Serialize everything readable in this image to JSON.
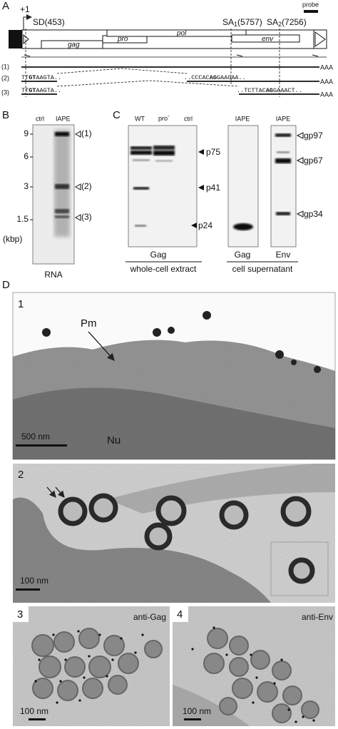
{
  "panel_a": {
    "label": "A",
    "start": "+1",
    "probe": "probe",
    "sd": "SD(453)",
    "sa1": {
      "prefix": "SA",
      "sub": "1",
      "suffix": "(5757)"
    },
    "sa2": {
      "prefix": "SA",
      "sub": "2",
      "suffix": "(7256)"
    },
    "genes": [
      "gag",
      "pro",
      "pol",
      "env"
    ],
    "transcripts": [
      {
        "label": "(1)",
        "tail": "AAA"
      },
      {
        "label": "(2)",
        "left": [
          "TT",
          "GT",
          "AAGTA.."
        ],
        "right": [
          "..CCCAC",
          "AG",
          "GAAGAA.."
        ],
        "tail": "AAA"
      },
      {
        "label": "(3)",
        "left": [
          "TT",
          "GT",
          "AAGTA.."
        ],
        "right": [
          "..TCTTAC",
          "AG",
          "GAAACT.."
        ],
        "tail": "AAA"
      }
    ]
  },
  "panel_b": {
    "label": "B",
    "lanes": [
      "ctrl",
      "IAPE"
    ],
    "sizes": [
      9,
      6,
      3,
      1.5
    ],
    "unit": "(kbp)",
    "bands": [
      "(1)",
      "(2)",
      "(3)"
    ],
    "caption": "RNA"
  },
  "panel_c": {
    "label": "C",
    "extract_lanes": [
      {
        "text": "WT"
      },
      {
        "text": "pro",
        "sup": "-"
      },
      {
        "text": "ctrl"
      }
    ],
    "extract_markers": [
      "p75",
      "p41",
      "p24"
    ],
    "supernatant_lanes": [
      "IAPE",
      "IAPE"
    ],
    "supernatant_markers": [
      "gp97",
      "gp67",
      "gp34"
    ],
    "captions": {
      "extract_antibody": "Gag",
      "extract": "whole-cell extract",
      "supernatant_gag": "Gag",
      "supernatant_env": "Env",
      "supernatant": "cell supernatant"
    }
  },
  "panel_d": {
    "label": "D",
    "micrographs": [
      {
        "number": "1",
        "labels": [
          "Pm",
          "Nu"
        ],
        "scale": "500 nm"
      },
      {
        "number": "2",
        "scale": "100 nm"
      },
      {
        "number": "3",
        "stain": "anti-Gag",
        "scale": "100 nm"
      },
      {
        "number": "4",
        "stain": "anti-Env",
        "scale": "100 nm"
      }
    ]
  }
}
